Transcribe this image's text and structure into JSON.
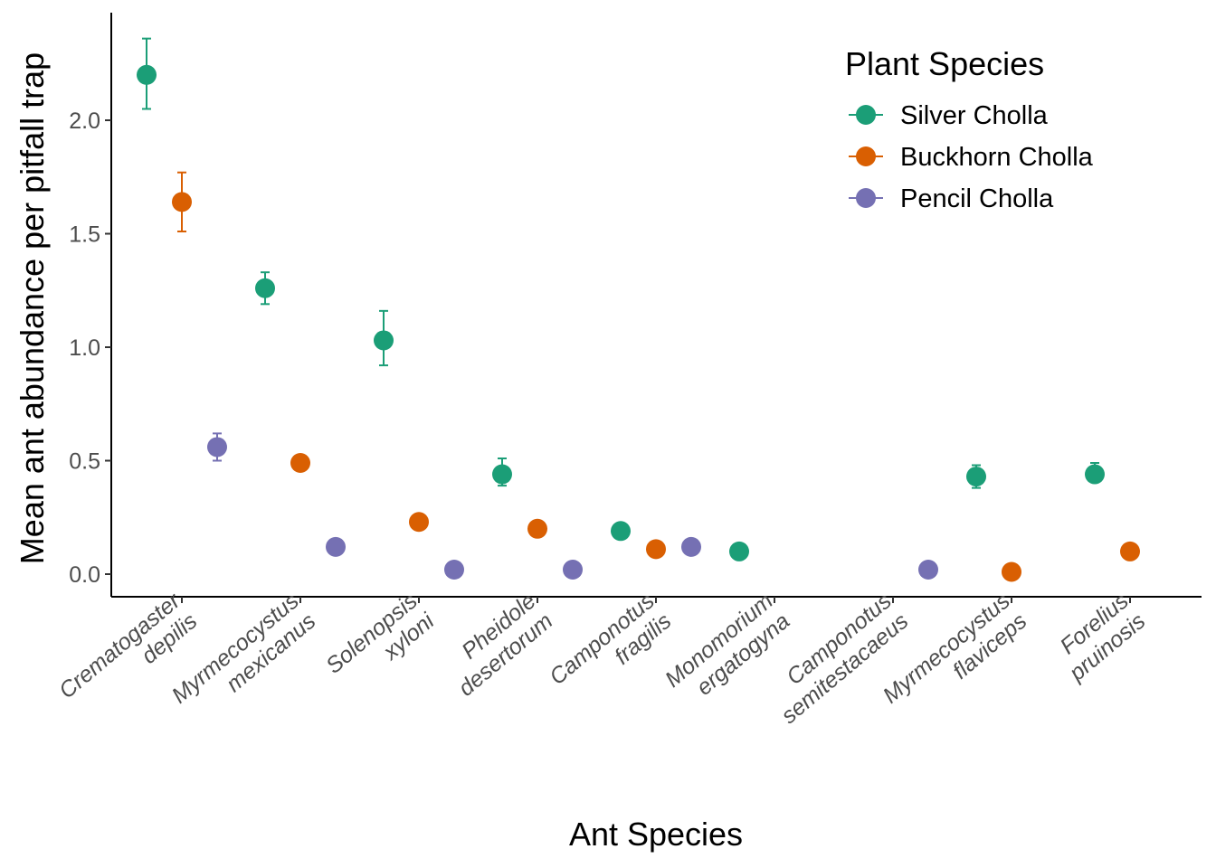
{
  "chart_data": {
    "type": "scatter",
    "title": "",
    "xlabel": "Ant Species",
    "ylabel": "Mean ant abundance per pitfall trap",
    "ylim": [
      -0.1,
      2.47
    ],
    "yticks": [
      0.0,
      0.5,
      1.0,
      1.5,
      2.0
    ],
    "ytick_labels": [
      "0.0",
      "0.5",
      "1.0",
      "1.5",
      "2.0"
    ],
    "grid": false,
    "legend": {
      "title": "Plant Species",
      "position": "top-right"
    },
    "categories": [
      [
        "Crematogaster",
        "depilis"
      ],
      [
        "Myrmecocystus",
        "mexicanus"
      ],
      [
        "Solenopsis",
        "xyloni"
      ],
      [
        "Pheidole",
        "desertorum"
      ],
      [
        "Camponotus",
        "fragilis"
      ],
      [
        "Monomorium",
        "ergatogyna"
      ],
      [
        "Camponotus",
        "semitestacaeus"
      ],
      [
        "Myrmecocystus",
        "flaviceps"
      ],
      [
        "Forelius",
        "pruinosis"
      ]
    ],
    "series": [
      {
        "name": "Silver Cholla",
        "color": "#1b9e77",
        "values": [
          2.2,
          1.26,
          1.03,
          0.44,
          0.19,
          0.1,
          null,
          0.43,
          0.44
        ],
        "err_low": [
          2.05,
          1.19,
          0.92,
          0.39,
          null,
          null,
          null,
          0.38,
          0.41
        ],
        "err_high": [
          2.36,
          1.33,
          1.16,
          0.51,
          null,
          null,
          null,
          0.48,
          0.49
        ]
      },
      {
        "name": "Buckhorn Cholla",
        "color": "#d95f02",
        "values": [
          1.64,
          0.49,
          0.23,
          0.2,
          0.11,
          null,
          null,
          0.01,
          0.1
        ],
        "err_low": [
          1.51,
          null,
          null,
          null,
          null,
          null,
          null,
          null,
          null
        ],
        "err_high": [
          1.77,
          null,
          null,
          null,
          null,
          null,
          null,
          null,
          null
        ]
      },
      {
        "name": "Pencil Cholla",
        "color": "#7570b3",
        "values": [
          0.56,
          0.12,
          0.02,
          0.02,
          0.12,
          null,
          0.02,
          null,
          null
        ],
        "err_low": [
          0.5,
          null,
          null,
          null,
          null,
          null,
          null,
          null,
          null
        ],
        "err_high": [
          0.62,
          null,
          null,
          null,
          null,
          null,
          null,
          null,
          null
        ]
      }
    ]
  }
}
